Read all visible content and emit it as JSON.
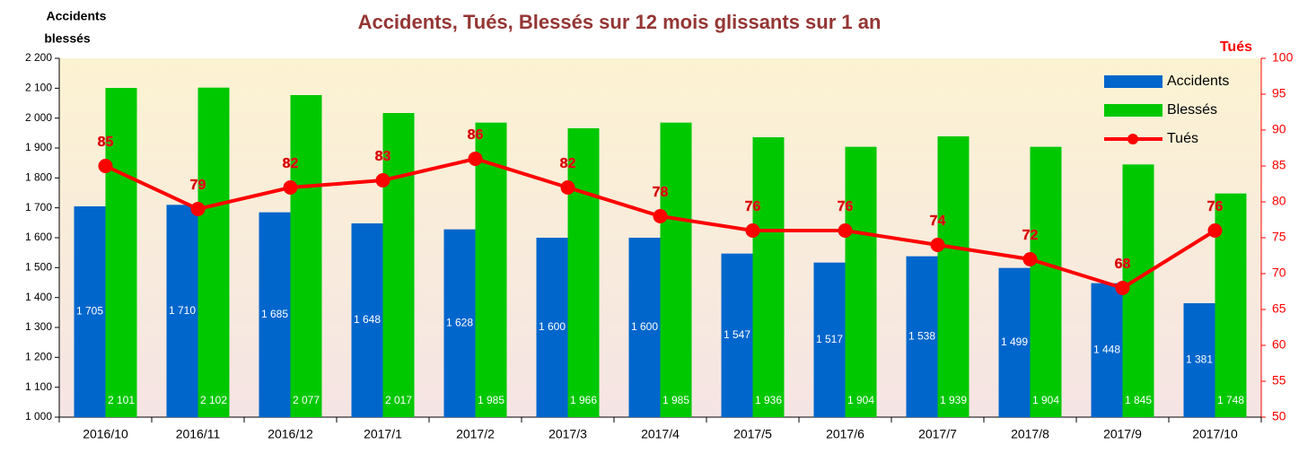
{
  "chart_data": {
    "type": "bar_line",
    "title": "Accidents, Tués, Blessés sur 12 mois glissants sur 1 an",
    "y_label": [
      "Accidents",
      "blessés"
    ],
    "y2_label": "Tués",
    "categories": [
      "2016/10",
      "2016/11",
      "2016/12",
      "2017/1",
      "2017/2",
      "2017/3",
      "2017/4",
      "2017/5",
      "2017/6",
      "2017/7",
      "2017/8",
      "2017/9",
      "2017/10"
    ],
    "series": [
      {
        "name": "Accidents",
        "type": "bar",
        "color": "#0066cc",
        "values": [
          1705,
          1710,
          1685,
          1648,
          1628,
          1600,
          1600,
          1547,
          1517,
          1538,
          1499,
          1448,
          1381
        ],
        "value_labels": [
          "1 705",
          "1 710",
          "1 685",
          "1 648",
          "1 628",
          "1 600",
          "1 600",
          "1 547",
          "1 517",
          "1 538",
          "1 499",
          "1 448",
          "1 381"
        ]
      },
      {
        "name": "Blessés",
        "type": "bar",
        "color": "#00c800",
        "values": [
          2101,
          2102,
          2077,
          2017,
          1985,
          1966,
          1985,
          1936,
          1904,
          1939,
          1904,
          1845,
          1748
        ],
        "value_labels": [
          "2 101",
          "2 102",
          "2 077",
          "2 017",
          "1 985",
          "1 966",
          "1 985",
          "1 936",
          "1 904",
          "1 939",
          "1 904",
          "1 845",
          "1 748"
        ]
      },
      {
        "name": "Tués",
        "type": "line",
        "axis": "y2",
        "color": "#ff0000",
        "values": [
          85,
          79,
          82,
          83,
          86,
          82,
          78,
          76,
          76,
          74,
          72,
          68,
          76
        ]
      }
    ],
    "ylim": [
      1000,
      2200
    ],
    "yticks": [
      {
        "value": 1000,
        "label": "1 000"
      },
      {
        "value": 1100,
        "label": "1 100"
      },
      {
        "value": 1200,
        "label": "1 200"
      },
      {
        "value": 1300,
        "label": "1 300"
      },
      {
        "value": 1400,
        "label": "1 400"
      },
      {
        "value": 1500,
        "label": "1 500"
      },
      {
        "value": 1600,
        "label": "1 600"
      },
      {
        "value": 1700,
        "label": "1 700"
      },
      {
        "value": 1800,
        "label": "1 800"
      },
      {
        "value": 1900,
        "label": "1 900"
      },
      {
        "value": 2000,
        "label": "2 000"
      },
      {
        "value": 2100,
        "label": "2 100"
      },
      {
        "value": 2200,
        "label": "2 200"
      }
    ],
    "y2lim": [
      50,
      100
    ],
    "y2ticks": [
      50,
      55,
      60,
      65,
      70,
      75,
      80,
      85,
      90,
      95,
      100
    ],
    "legend": "top-right"
  }
}
